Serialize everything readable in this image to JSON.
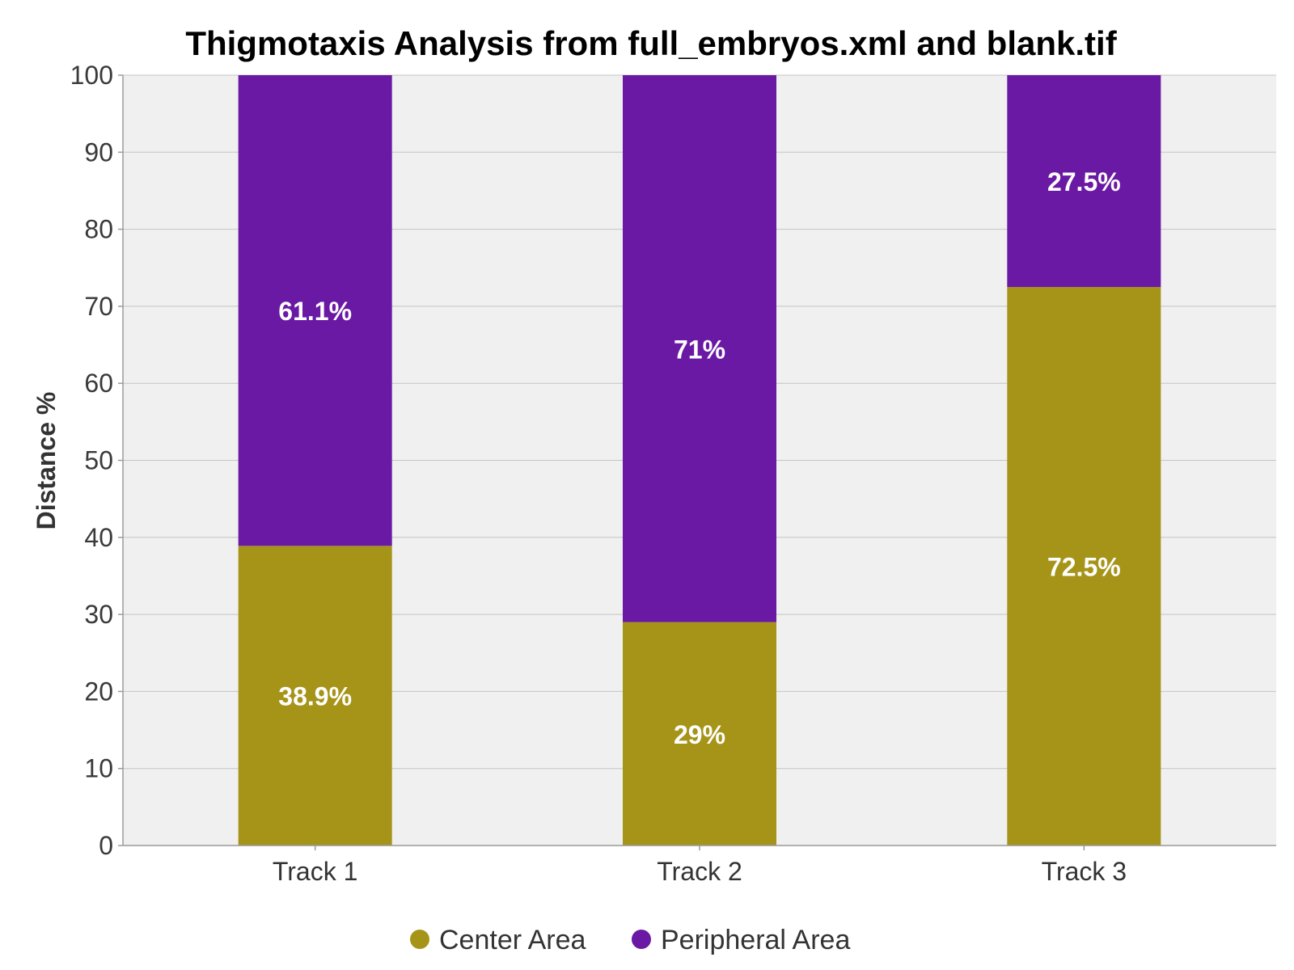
{
  "chart_data": {
    "type": "bar",
    "stacked": true,
    "title": "Thigmotaxis Analysis from full_embryos.xml and blank.tif",
    "xlabel": "",
    "ylabel": "Distance %",
    "ylim": [
      0,
      100
    ],
    "yticks": [
      0,
      10,
      20,
      30,
      40,
      50,
      60,
      70,
      80,
      90,
      100
    ],
    "ytick_labels": [
      "0",
      "10",
      "20",
      "30",
      "40",
      "50",
      "60",
      "70",
      "80",
      "90",
      "100"
    ],
    "categories": [
      "Track 1",
      "Track 2",
      "Track 3"
    ],
    "grid": true,
    "legend_position": "bottom-center",
    "series": [
      {
        "name": "Center Area",
        "color": "#a69419",
        "values": [
          38.9,
          29,
          72.5
        ],
        "labels": [
          "38.9%",
          "29%",
          "72.5%"
        ]
      },
      {
        "name": "Peripheral Area",
        "color": "#6a19a4",
        "values": [
          61.1,
          71,
          27.5
        ],
        "labels": [
          "61.1%",
          "71%",
          "27.5%"
        ]
      }
    ],
    "colors": {
      "plot_background": "#f0f0f0",
      "gridline": "#c4c4c4",
      "axis": "#9a9a9a"
    }
  }
}
